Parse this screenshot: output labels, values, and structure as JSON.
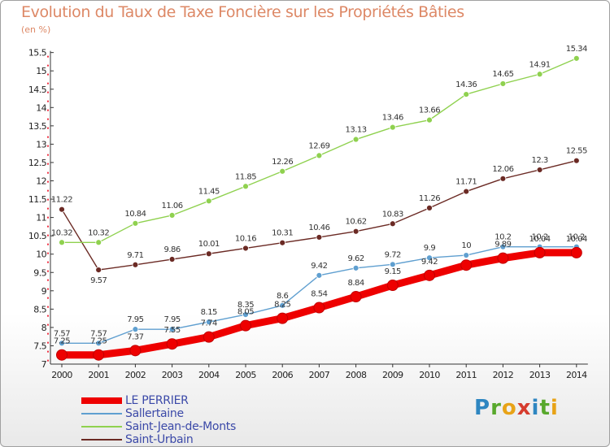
{
  "header": {
    "title": "Evolution du Taux de Taxe Foncière sur les Propriétés Bâties",
    "unit": "(en %)"
  },
  "logo": {
    "letters": [
      "P",
      "r",
      "o",
      "x",
      "i",
      "t",
      "i"
    ],
    "colors": [
      "#2e86c1",
      "#58a82c",
      "#e8a317",
      "#d63c2e",
      "#2e86c1",
      "#58a82c",
      "#e8a317"
    ]
  },
  "chart_data": {
    "type": "line",
    "title": "Evolution du Taux de Taxe Foncière sur les Propriétés Bâties",
    "ylabel": "(en %)",
    "xlabel": "",
    "x": [
      "2000",
      "2001",
      "2002",
      "2003",
      "2004",
      "2005",
      "2006",
      "2007",
      "2008",
      "2009",
      "2010",
      "2011",
      "2012",
      "2013",
      "2014"
    ],
    "ylim": [
      7,
      15.5
    ],
    "yticks": [
      "7",
      "7.5",
      "8",
      "8.5",
      "9",
      "9.5",
      "10",
      "10.5",
      "11",
      "11.5",
      "12",
      "12.5",
      "13",
      "13.5",
      "14",
      "14.5",
      "15",
      "15.5"
    ],
    "grid": false,
    "legend_position": "bottom-left",
    "series": [
      {
        "name": "LE PERRIER",
        "color": "#ee0000",
        "values": [
          7.25,
          7.25,
          7.37,
          7.55,
          7.74,
          8.05,
          8.25,
          8.54,
          8.84,
          9.15,
          9.42,
          9.7,
          9.89,
          10.04,
          10.04
        ],
        "labels": [
          "7.25",
          "7.25",
          "7.37",
          "7.55",
          "7.74",
          "8.05",
          "8.25",
          "8.54",
          "8.84",
          "9.15",
          "9.42",
          "",
          "9.89",
          "10.04",
          "10.04"
        ]
      },
      {
        "name": "Sallertaine",
        "color": "#5f9fd0",
        "values": [
          7.57,
          7.57,
          7.95,
          7.95,
          8.15,
          8.35,
          8.6,
          9.42,
          9.62,
          9.72,
          9.9,
          9.97,
          10.2,
          10.2,
          10.2
        ],
        "labels": [
          "7.57",
          "7.57",
          "7.95",
          "7.95",
          "8.15",
          "8.35",
          "8.6",
          "9.42",
          "9.62",
          "9.72",
          "9.9",
          "10",
          "10.2",
          "10.2",
          "10.2"
        ]
      },
      {
        "name": "Saint-Jean-de-Monts",
        "color": "#8fd14f",
        "values": [
          10.32,
          10.32,
          10.84,
          11.06,
          11.45,
          11.85,
          12.26,
          12.69,
          13.13,
          13.46,
          13.66,
          14.36,
          14.65,
          14.91,
          15.34
        ],
        "labels": [
          "10.32",
          "10.32",
          "10.84",
          "11.06",
          "11.45",
          "11.85",
          "12.26",
          "12.69",
          "13.13",
          "13.46",
          "13.66",
          "14.36",
          "14.65",
          "14.91",
          "15.34"
        ]
      },
      {
        "name": "Saint-Urbain",
        "color": "#6b2a24",
        "values": [
          11.22,
          9.57,
          9.71,
          9.86,
          10.01,
          10.16,
          10.31,
          10.46,
          10.62,
          10.83,
          11.26,
          11.71,
          12.06,
          12.3,
          12.55
        ],
        "labels": [
          "11.22",
          "9.57",
          "9.71",
          "9.86",
          "10.01",
          "10.16",
          "10.31",
          "10.46",
          "10.62",
          "10.83",
          "11.26",
          "11.71",
          "12.06",
          "12.3",
          "12.55"
        ]
      }
    ]
  }
}
